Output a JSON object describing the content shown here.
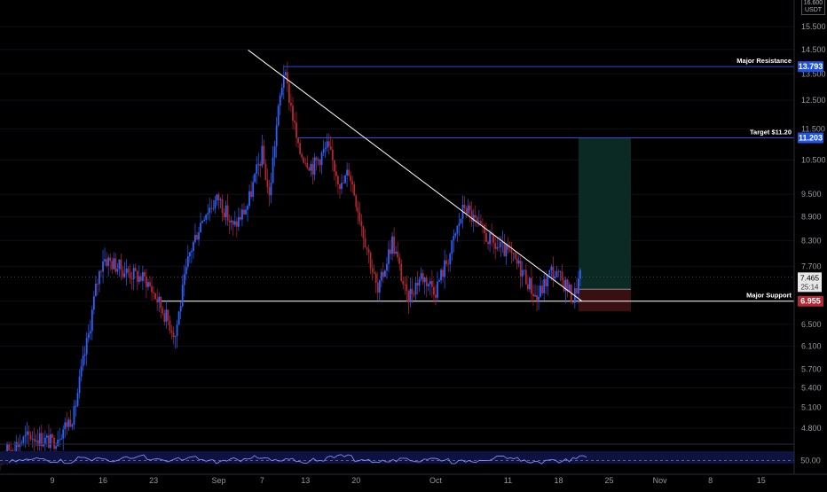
{
  "chart_data": {
    "type": "candlestick",
    "pair_quote": "USDT",
    "y_axis": {
      "ticks": [
        "4.800",
        "5.100",
        "5.400",
        "5.700",
        "6.100",
        "6.500",
        "6.955",
        "7.700",
        "8.300",
        "8.900",
        "9.500",
        "10.500",
        "11.500",
        "12.500",
        "13.500",
        "14.500",
        "15.500"
      ],
      "scale": "log",
      "top_partial_tick": "16.600"
    },
    "x_axis": {
      "ticks": [
        "9",
        "16",
        "23",
        "Sep",
        "7",
        "13",
        "20",
        "Oct",
        "11",
        "18",
        "25",
        "Nov",
        "8",
        "15"
      ]
    },
    "last_price": {
      "value": "7.465",
      "countdown": "25:14"
    },
    "price_tags": [
      {
        "value": "13.793",
        "color": "#1e53e5"
      },
      {
        "value": "11.203",
        "color": "#1e53e5"
      },
      {
        "value": "6.955",
        "color": "#b22833"
      }
    ],
    "annotations": [
      {
        "text": "Major Resistance",
        "price": 13.793
      },
      {
        "text": "Target $11.20",
        "price": 11.203
      },
      {
        "text": "Major Support",
        "price": 6.955
      }
    ],
    "descending_trendline": {
      "start": {
        "date": "Sep 9",
        "price": 14.4
      },
      "end": {
        "date": "Oct 20",
        "price": 6.955
      }
    },
    "trade_box": {
      "entry": 7.2,
      "target": 11.203,
      "stop": 6.75
    },
    "price_path": [
      [
        "Aug 1",
        4.4
      ],
      [
        "Aug 6",
        4.7
      ],
      [
        "Aug 9",
        4.6
      ],
      [
        "Aug 12",
        5.0
      ],
      [
        "Aug 14",
        6.3
      ],
      [
        "Aug 15",
        7.2
      ],
      [
        "Aug 16",
        7.9
      ],
      [
        "Aug 19",
        7.6
      ],
      [
        "Aug 22",
        7.4
      ],
      [
        "Aug 24",
        6.85
      ],
      [
        "Aug 26",
        6.3
      ],
      [
        "Aug 28",
        8.0
      ],
      [
        "Aug 30",
        9.0
      ],
      [
        "Sep 1",
        9.4
      ],
      [
        "Sep 3",
        8.6
      ],
      [
        "Sep 5",
        9.2
      ],
      [
        "Sep 7",
        10.7
      ],
      [
        "Sep 8",
        9.4
      ],
      [
        "Sep 9",
        11.6
      ],
      [
        "Sep 10",
        13.6
      ],
      [
        "Sep 11",
        12.3
      ],
      [
        "Sep 12",
        10.8
      ],
      [
        "Sep 14",
        10.3
      ],
      [
        "Sep 16",
        10.9
      ],
      [
        "Sep 18",
        9.7
      ],
      [
        "Sep 19",
        10.2
      ],
      [
        "Sep 21",
        8.5
      ],
      [
        "Sep 23",
        7.1
      ],
      [
        "Sep 25",
        8.3
      ],
      [
        "Sep 27",
        7.0
      ],
      [
        "Sep 29",
        7.5
      ],
      [
        "Oct 1",
        7.2
      ],
      [
        "Oct 3",
        8.0
      ],
      [
        "Oct 5",
        9.2
      ],
      [
        "Oct 7",
        8.6
      ],
      [
        "Oct 9",
        8.2
      ],
      [
        "Oct 11",
        8.0
      ],
      [
        "Oct 13",
        7.6
      ],
      [
        "Oct 15",
        7.0
      ],
      [
        "Oct 17",
        7.6
      ],
      [
        "Oct 19",
        7.3
      ],
      [
        "Oct 20",
        7.0
      ],
      [
        "Oct 21",
        7.465
      ]
    ],
    "rsi": {
      "level_label": "50.00",
      "path": [
        48,
        52,
        55,
        50,
        47,
        58,
        53,
        49,
        56,
        60,
        52,
        48,
        54,
        57,
        50,
        46,
        52,
        58,
        55,
        49,
        51,
        47,
        53,
        58,
        62,
        52,
        49,
        48,
        51,
        50,
        55,
        53,
        47,
        50,
        54,
        57,
        53,
        49,
        46,
        48,
        52,
        58
      ]
    }
  }
}
